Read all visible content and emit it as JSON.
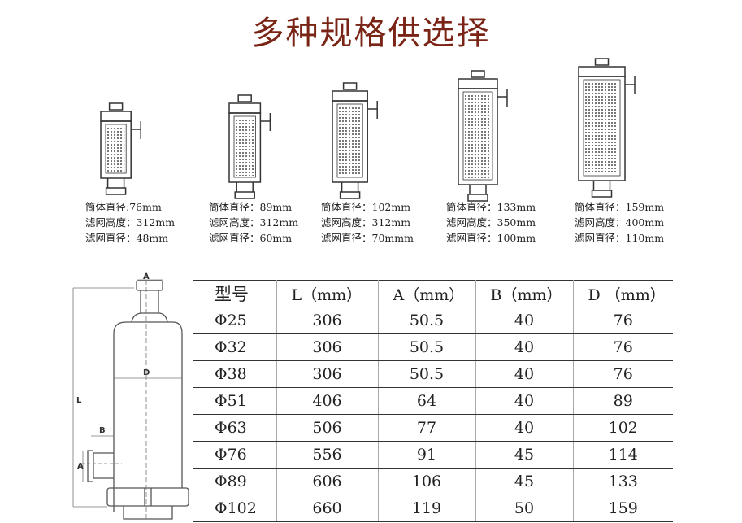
{
  "title": "多种规格供选择",
  "models": [
    {
      "lines": [
        "筒体直径:76mm",
        "滤网高度：312mm",
        "滤网直径：48mm"
      ]
    },
    {
      "lines": [
        "筒体直径：89mm",
        "滤网高度：312mm",
        "滤网直径：60mm"
      ]
    },
    {
      "lines": [
        "筒体直径：102mm",
        "滤网高度：312mm",
        "滤网直径：70mmm"
      ]
    },
    {
      "lines": [
        "筒体直径：133mm",
        "滤网高度：350mm",
        "滤网直径：100mm"
      ]
    },
    {
      "lines": [
        "筒体直径：159mm",
        "滤网高度：400mm",
        "滤网直径：110mm"
      ]
    }
  ],
  "diagram": {
    "labels": {
      "a_top": "A",
      "d": "D",
      "l": "L",
      "b": "B",
      "a_side": "A"
    }
  },
  "table": {
    "headers": [
      "型号",
      "L（mm）",
      "A（mm）",
      "B（mm）",
      "D （mm）"
    ],
    "rows": [
      [
        "Φ25",
        "306",
        "50.5",
        "40",
        "76"
      ],
      [
        "Φ32",
        "306",
        "50.5",
        "40",
        "76"
      ],
      [
        "Φ38",
        "306",
        "50.5",
        "40",
        "76"
      ],
      [
        "Φ51",
        "406",
        "64",
        "40",
        "89"
      ],
      [
        "Φ63",
        "506",
        "77",
        "40",
        "102"
      ],
      [
        "Φ76",
        "556",
        "91",
        "45",
        "114"
      ],
      [
        "Φ89",
        "606",
        "106",
        "45",
        "133"
      ],
      [
        "Φ102",
        "660",
        "119",
        "50",
        "159"
      ]
    ]
  }
}
